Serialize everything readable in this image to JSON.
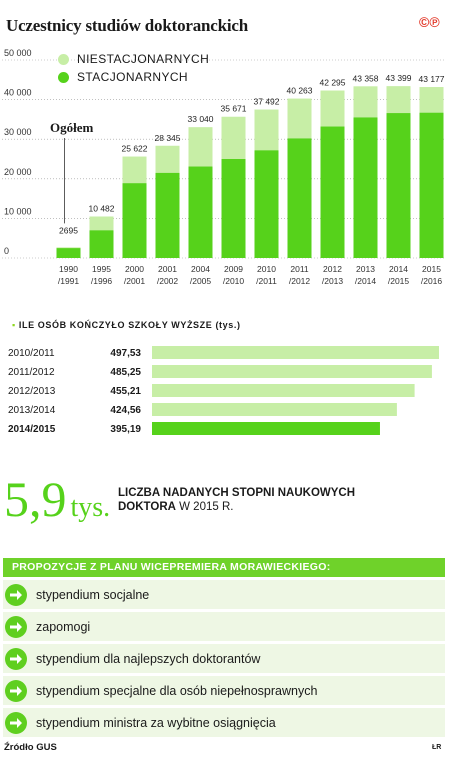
{
  "title": "Uczestnicy studiów doktoranckich",
  "chart_data": [
    {
      "type": "bar",
      "stacked": true,
      "annotation": "Ogółem",
      "categories": [
        "1990\n/1991",
        "1995\n/1996",
        "2000\n/2001",
        "2001\n/2002",
        "2004\n/2005",
        "2009\n/2010",
        "2010\n/2011",
        "2011\n/2012",
        "2012\n/2013",
        "2013\n/2014",
        "2014\n/2015",
        "2015\n/2016"
      ],
      "series": [
        {
          "name": "STACJONARNYCH",
          "color": "#56d21b",
          "values": [
            2500,
            7000,
            18900,
            21500,
            23100,
            25000,
            27200,
            30200,
            33200,
            35500,
            36600,
            36700
          ]
        },
        {
          "name": "NIESTACJONARNYCH",
          "color": "#c7eea6",
          "values": [
            195,
            3482,
            6722,
            6845,
            9940,
            10671,
            10292,
            10063,
            9095,
            7858,
            6799,
            6477
          ]
        }
      ],
      "totals": [
        2695,
        10482,
        25622,
        28345,
        33040,
        35671,
        37492,
        40263,
        42295,
        43358,
        43399,
        43177
      ],
      "total_labels": [
        "2695",
        "10 482",
        "25 622",
        "28 345",
        "33 040",
        "35 671",
        "37 492",
        "40 263",
        "42 295",
        "43 358",
        "43 399",
        "43 177"
      ],
      "yticks": [
        "0",
        "10 000",
        "20 000",
        "30 000",
        "40 000",
        "50 000"
      ],
      "ylim": [
        0,
        50000
      ]
    },
    {
      "type": "bar",
      "orientation": "horizontal",
      "title": "ILE OSÓB KOŃCZYŁO SZKOŁY WYŻSZE (tys.)",
      "categories": [
        "2010/2011",
        "2011/2012",
        "2012/2013",
        "2013/2014",
        "2014/2015"
      ],
      "values": [
        497.53,
        485.25,
        455.21,
        424.56,
        395.19
      ],
      "value_labels": [
        "497,53",
        "485,25",
        "455,21",
        "424,56",
        "395,19"
      ]
    }
  ],
  "highlight": {
    "number": "5,9",
    "unit": "tys.",
    "caption_bold": "LICZBA NADANYCH STOPNI NAUKOWYCH DOKTORA",
    "caption_rest": " W 2015 R."
  },
  "proposals": {
    "header": "PROPOZYCJE Z PLANU WICEPREMIERA MORAWIECKIEGO:",
    "items": [
      "stypendium socjalne",
      "zapomogi",
      "stypendium dla najlepszych doktorantów",
      "stypendium specjalne dla osób niepełnosprawnych",
      "stypendium ministra za wybitne osiągnięcia"
    ]
  },
  "source": "Źródło GUS",
  "author": "ŁR",
  "colors": {
    "dark_green": "#56d21b",
    "light_green": "#c7eea6",
    "accent": "#6fd22a"
  }
}
